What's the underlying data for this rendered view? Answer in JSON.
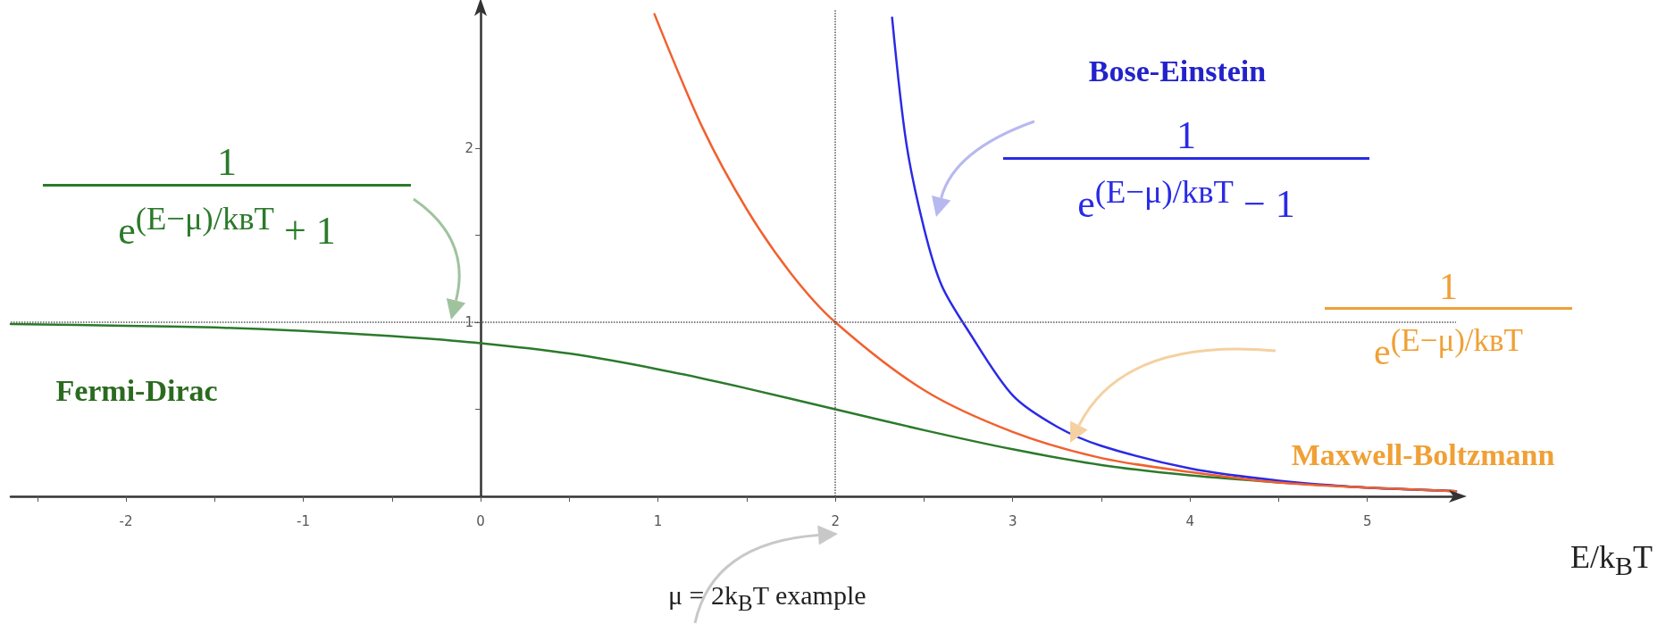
{
  "chart_data": {
    "type": "line",
    "xlabel": "E/k$_{B}$T",
    "xlim": [
      -2.65,
      5.5
    ],
    "ylim": [
      0,
      2.8
    ],
    "xticks": [
      -2,
      -1,
      0,
      1,
      2,
      3,
      4,
      5,
      {
        "value": -2.5,
        "label": null
      },
      {
        "value": -1.5,
        "label": null
      },
      {
        "value": -0.5,
        "label": null
      },
      {
        "value": 0.5,
        "label": null
      },
      {
        "value": 1.5,
        "label": null
      },
      {
        "value": 2.5,
        "label": null
      },
      {
        "value": 3.5,
        "label": null
      },
      {
        "value": 4.5,
        "label": null
      }
    ],
    "yticks": [
      1,
      2,
      {
        "value": 0.5,
        "label": null
      },
      {
        "value": 1.5,
        "label": null
      }
    ],
    "series": [
      {
        "name": "Fermi-Dirac",
        "color": "#2b7a2b",
        "x": [
          -2.65,
          -2,
          -1.5,
          -1,
          -0.5,
          0,
          0.5,
          1,
          1.5,
          2,
          2.5,
          3,
          3.5,
          4,
          4.5,
          5,
          5.5
        ],
        "values": [
          0.99,
          0.98,
          0.97,
          0.95,
          0.92,
          0.88,
          0.82,
          0.73,
          0.62,
          0.5,
          0.38,
          0.27,
          0.18,
          0.12,
          0.08,
          0.05,
          0.03
        ]
      },
      {
        "name": "Bose-Einstein",
        "color": "#2a2ae6",
        "x": [
          2.32,
          2.4,
          2.5,
          2.6,
          2.75,
          3,
          3.25,
          3.5,
          4,
          4.5,
          5,
          5.5
        ],
        "values": [
          2.75,
          2.03,
          1.54,
          1.21,
          0.95,
          0.58,
          0.4,
          0.29,
          0.16,
          0.09,
          0.05,
          0.03
        ]
      },
      {
        "name": "Maxwell-Boltzmann",
        "color": "#f2602e",
        "x": [
          0.98,
          1.25,
          1.5,
          1.75,
          2,
          2.5,
          3,
          3.5,
          4,
          4.5,
          5,
          5.5
        ],
        "values": [
          2.77,
          2.12,
          1.65,
          1.28,
          1,
          0.61,
          0.37,
          0.22,
          0.14,
          0.08,
          0.05,
          0.03
        ]
      }
    ],
    "ref_lines": [
      {
        "axis": "x",
        "value": 2,
        "line_style": "dotted",
        "color": "#555555"
      },
      {
        "axis": "y",
        "value": 1,
        "line_style": "dotted",
        "color": "#555555"
      }
    ],
    "annotations": [
      "1",
      "e$^{(E−μ)/kʙT}$ + 1",
      "1",
      "e$^{(E−μ)/kʙT}$ − 1",
      "1",
      "e$^{(E−μ)/kʙT}$",
      "μ = 2k$_{B}$T example"
    ],
    "marker": "none",
    "line_style": "solid",
    "grid": false,
    "legend": false
  }
}
